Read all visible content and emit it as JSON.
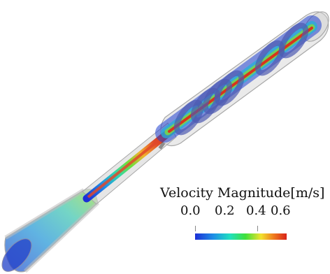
{
  "colorbar": {
    "title": "Velocity Magnitude[m/s]",
    "ticks": [
      "0.0",
      "0.2",
      "0.4",
      "0.6"
    ],
    "colors": [
      "#1d2fd6",
      "#1e8fe6",
      "#20e0c0",
      "#3fe03a",
      "#f2e22e",
      "#ef7a1e",
      "#d8231a"
    ]
  },
  "scene": {
    "pipe_outline_color": "#a8a8a8",
    "glass_color": "#d0d0d0",
    "ring_color": "#4d5ab0"
  }
}
